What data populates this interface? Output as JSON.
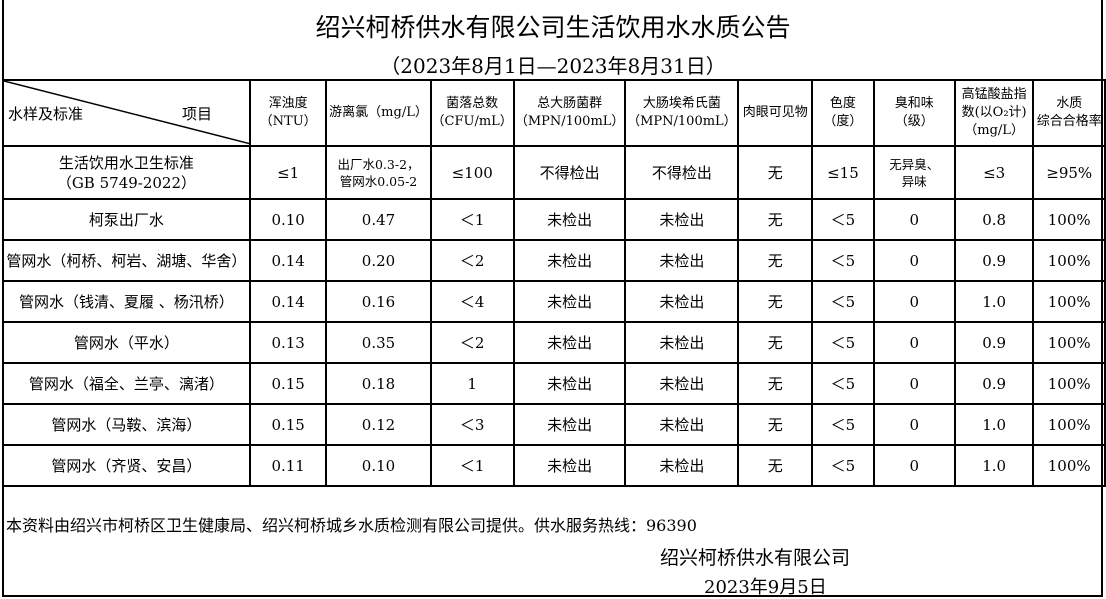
{
  "title": "绍兴柯桥供水有限公司生活饮用水水质公告",
  "period": "（2023年8月1日—2023年8月31日）",
  "header": {
    "corner_left": "水样及标准",
    "corner_right": "项目",
    "cols": [
      [
        "浑浊度",
        "（NTU）"
      ],
      [
        "游离氯（mg/L）"
      ],
      [
        "菌落总数",
        "（CFU/mL）"
      ],
      [
        "总大肠菌群",
        "（MPN/100mL）"
      ],
      [
        "大肠埃希氏菌",
        "（MPN/100mL）"
      ],
      [
        "肉眼可见物"
      ],
      [
        "色度",
        "（度）"
      ],
      [
        "臭和味",
        "（级）"
      ],
      [
        "高锰酸盐指",
        "数(以O₂计)",
        "（mg/L）"
      ],
      [
        "水质",
        "综合合格率"
      ]
    ]
  },
  "standard": {
    "name": [
      "生活饮用水卫生标准",
      "（GB 5749-2022）"
    ],
    "values": [
      "≤1",
      [
        "出厂水0.3-2，",
        "管网水0.05-2"
      ],
      "≤100",
      "不得检出",
      "不得检出",
      "无",
      "≤15",
      [
        "无异臭、",
        "异味"
      ],
      "≤3",
      "≥95%"
    ]
  },
  "rows": [
    {
      "name": "柯泵出厂水",
      "values": [
        "0.10",
        "0.47",
        "＜1",
        "未检出",
        "未检出",
        "无",
        "＜5",
        "0",
        "0.8",
        "100%"
      ]
    },
    {
      "name": "管网水（柯桥、柯岩、湖塘、华舍）",
      "values": [
        "0.14",
        "0.20",
        "＜2",
        "未检出",
        "未检出",
        "无",
        "＜5",
        "0",
        "0.9",
        "100%"
      ]
    },
    {
      "name": "管网水（钱清、夏履 、杨汛桥）",
      "values": [
        "0.14",
        "0.16",
        "＜4",
        "未检出",
        "未检出",
        "无",
        "＜5",
        "0",
        "1.0",
        "100%"
      ]
    },
    {
      "name": "管网水（平水）",
      "values": [
        "0.13",
        "0.35",
        "＜2",
        "未检出",
        "未检出",
        "无",
        "＜5",
        "0",
        "0.9",
        "100%"
      ]
    },
    {
      "name": "管网水（福全、兰亭、漓渚）",
      "values": [
        "0.15",
        "0.18",
        "1",
        "未检出",
        "未检出",
        "无",
        "＜5",
        "0",
        "0.9",
        "100%"
      ]
    },
    {
      "name": "管网水（马鞍、滨海）",
      "values": [
        "0.15",
        "0.12",
        "＜3",
        "未检出",
        "未检出",
        "无",
        "＜5",
        "0",
        "1.0",
        "100%"
      ]
    },
    {
      "name": "管网水（齐贤、安昌）",
      "values": [
        "0.11",
        "0.10",
        "＜1",
        "未检出",
        "未检出",
        "无",
        "＜5",
        "0",
        "1.0",
        "100%"
      ]
    }
  ],
  "footer": {
    "source": "本资料由绍兴市柯桥区卫生健康局、绍兴柯桥城乡水质检测有限公司提供。供水服务热线：96390",
    "company": "绍兴柯桥供水有限公司",
    "date": "2023年9月5日"
  }
}
